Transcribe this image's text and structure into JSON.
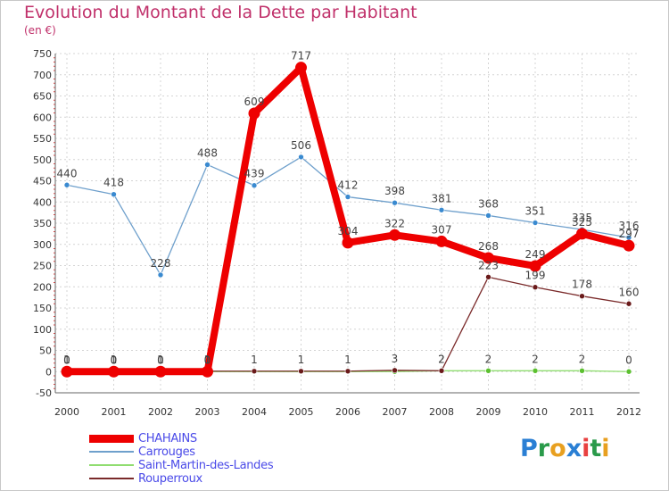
{
  "title": "Evolution du Montant de la Dette par Habitant",
  "unit": "(en €)",
  "logo": [
    "P",
    "r",
    "o",
    "x",
    "i",
    "t",
    "i"
  ],
  "logo_colors": [
    "#2a7fd4",
    "#2a9a4a",
    "#e8a020",
    "#2a7fd4",
    "#e84040",
    "#2a9a4a",
    "#e8a020"
  ],
  "chart_data": {
    "type": "line",
    "title": "Evolution du Montant de la Dette par Habitant",
    "ylabel": "(en €)",
    "xlabel": "",
    "ylim": [
      -50,
      750
    ],
    "yticks": [
      -50,
      0,
      50,
      100,
      150,
      200,
      250,
      300,
      350,
      400,
      450,
      500,
      550,
      600,
      650,
      700,
      750
    ],
    "categories": [
      "2000",
      "2001",
      "2002",
      "2003",
      "2004",
      "2005",
      "2006",
      "2007",
      "2008",
      "2009",
      "2010",
      "2011",
      "2012"
    ],
    "grid": true,
    "legend_position": "bottom-left",
    "series": [
      {
        "name": "Carrouges",
        "color": "#6fa0cc",
        "marker": "#3a8ad0",
        "values": [
          440,
          418,
          228,
          488,
          439,
          506,
          412,
          398,
          381,
          368,
          351,
          335,
          316
        ],
        "labels": [
          "440",
          "418",
          "228",
          "488",
          "439",
          "506",
          "412",
          "398",
          "381",
          "368",
          "351",
          "335",
          "316"
        ]
      },
      {
        "name": "Saint-Martin-des-Landes",
        "color": "#90dd70",
        "marker": "#5cc030",
        "values": [
          0,
          0,
          0,
          0,
          0,
          0,
          0,
          0,
          2,
          2,
          2,
          2,
          0
        ],
        "labels": [
          "0",
          "0",
          "0",
          "0",
          "",
          "",
          "",
          "",
          "2",
          "2",
          "2",
          "2",
          "0"
        ]
      },
      {
        "name": "Rouperroux",
        "color": "#7a2a2a",
        "marker": "#6a1a1a",
        "values": [
          1,
          1,
          1,
          1,
          1,
          1,
          1,
          3,
          2,
          223,
          199,
          178,
          160
        ],
        "labels": [
          "1",
          "1",
          "1",
          "1",
          "1",
          "1",
          "1",
          "3",
          "2",
          "223",
          "199",
          "178",
          "160"
        ]
      },
      {
        "name": "CHAHAINS",
        "color": "#ee0000",
        "marker": "#ee0000",
        "values": [
          0,
          0,
          0,
          0,
          609,
          717,
          304,
          322,
          307,
          268,
          249,
          325,
          297
        ],
        "labels": [
          "0",
          "0",
          "0",
          "0",
          "609",
          "717",
          "304",
          "322",
          "307",
          "268",
          "249",
          "325",
          "297"
        ]
      }
    ]
  },
  "legend": [
    {
      "label": "CHAHAINS",
      "color": "#ee0000",
      "thick": 9
    },
    {
      "label": "Carrouges",
      "color": "#6fa0cc",
      "thick": 2
    },
    {
      "label": "Saint-Martin-des-Landes",
      "color": "#90dd70",
      "thick": 2
    },
    {
      "label": "Rouperroux",
      "color": "#7a2a2a",
      "thick": 2
    }
  ]
}
